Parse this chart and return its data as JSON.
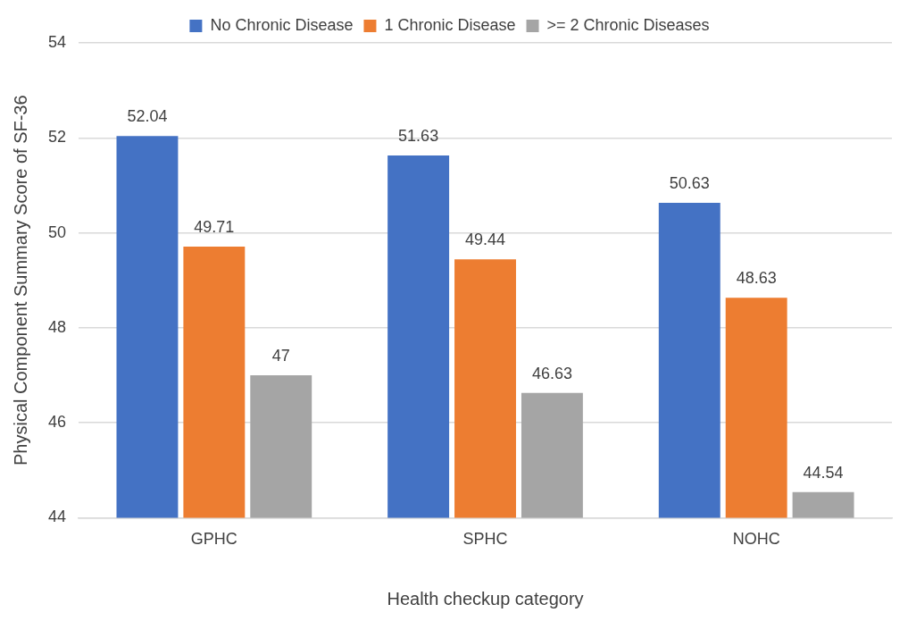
{
  "chart_data": {
    "type": "bar",
    "xlabel": "Health checkup category",
    "ylabel": "Physical Component Summary Score of SF-36",
    "categories": [
      "GPHC",
      "SPHC",
      "NOHC"
    ],
    "series": [
      {
        "name": "No Chronic Disease",
        "color": "#4472c4",
        "values": [
          52.04,
          51.63,
          50.63
        ]
      },
      {
        "name": "1 Chronic Disease",
        "color": "#ed7d31",
        "values": [
          49.71,
          49.44,
          48.63
        ]
      },
      {
        "name": ">= 2 Chronic Diseases",
        "color": "#a5a5a5",
        "values": [
          47,
          46.63,
          44.54
        ]
      }
    ],
    "ylim": [
      44,
      54
    ],
    "yticks": [
      44,
      46,
      48,
      50,
      52,
      54
    ],
    "grid": "y",
    "legend": "top",
    "data_labels": true
  }
}
